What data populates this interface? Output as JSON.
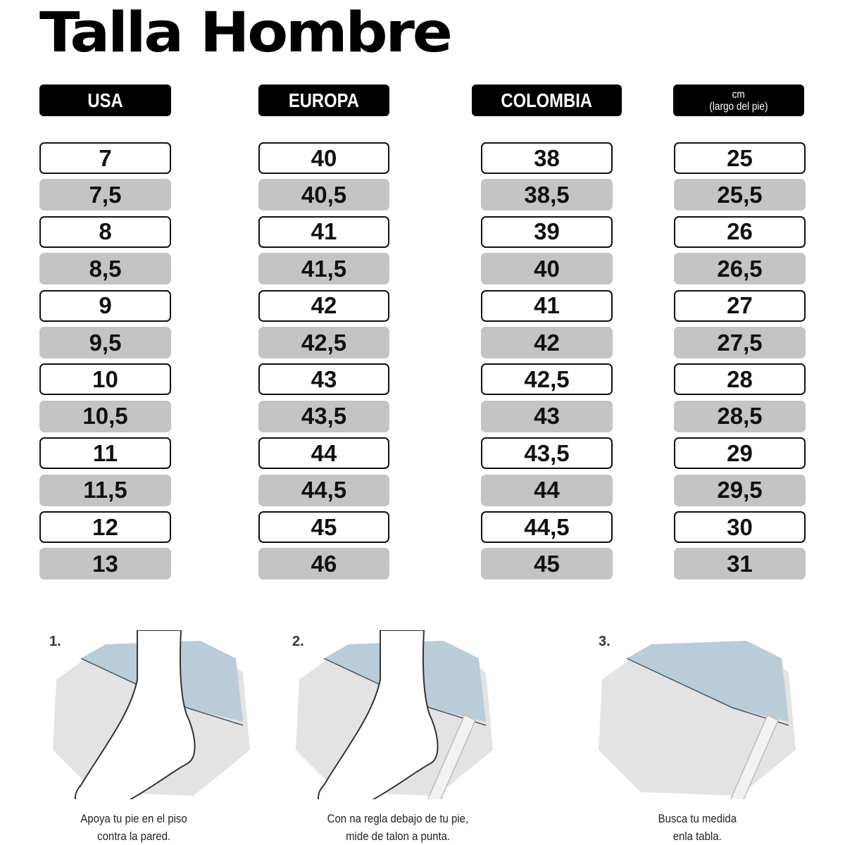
{
  "title": "Talla Hombre",
  "columns": [
    {
      "header": "USA",
      "values": [
        "7",
        "7,5",
        "8",
        "8,5",
        "9",
        "9,5",
        "10",
        "10,5",
        "11",
        "11,5",
        "12",
        "13"
      ]
    },
    {
      "header": "EUROPA",
      "values": [
        "40",
        "40,5",
        "41",
        "41,5",
        "42",
        "42,5",
        "43",
        "43,5",
        "44",
        "44,5",
        "45",
        "46"
      ]
    },
    {
      "header": "COLOMBIA",
      "values": [
        "38",
        "38,5",
        "39",
        "40",
        "41",
        "42",
        "42,5",
        "43",
        "43,5",
        "44",
        "44,5",
        "45"
      ]
    },
    {
      "header_line1": "cm",
      "header_line2": "(largo del pie)",
      "values": [
        "25",
        "25,5",
        "26",
        "26,5",
        "27",
        "27,5",
        "28",
        "28,5",
        "29",
        "29,5",
        "30",
        "31"
      ]
    }
  ],
  "steps": [
    {
      "number": "1.",
      "caption_line1": "Apoya tu pie en el piso",
      "caption_line2": "contra la pared.",
      "icon": "foot-against-wall"
    },
    {
      "number": "2.",
      "caption_line1": "Con na regla debajo de tu pie,",
      "caption_line2": "mide de talon a punta.",
      "icon": "foot-on-ruler"
    },
    {
      "number": "3.",
      "caption_line1": "Busca tu medida",
      "caption_line2": "enla tabla.",
      "icon": "ruler-on-floor"
    }
  ],
  "colors": {
    "header_bg": "#000000",
    "alt_row": "#c4c4c4",
    "wall": "#b9ccd8",
    "floor": "#e3e3e3"
  }
}
